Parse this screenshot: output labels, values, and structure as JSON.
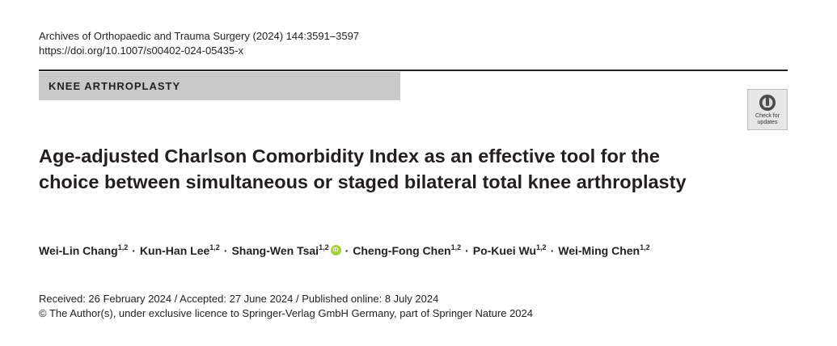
{
  "header": {
    "journal": "Archives of Orthopaedic and Trauma Surgery (2024) 144:3591–3597",
    "doi": "https://doi.org/10.1007/s00402-024-05435-x"
  },
  "section": {
    "label": "KNEE ARTHROPLASTY"
  },
  "badge": {
    "line1": "Check for",
    "line2": "updates",
    "icon": "check-for-updates-icon"
  },
  "article": {
    "title": "Age-adjusted Charlson Comorbidity Index as an effective tool for the choice between simultaneous or staged bilateral total knee arthroplasty"
  },
  "authors": [
    {
      "name": "Wei-Lin Chang",
      "aff": "1,2"
    },
    {
      "name": "Kun-Han Lee",
      "aff": "1,2"
    },
    {
      "name": "Shang-Wen Tsai",
      "aff": "1,2"
    },
    {
      "name": "Cheng-Fong Chen",
      "aff": "1,2"
    },
    {
      "name": "Po-Kuei Wu",
      "aff": "1,2"
    },
    {
      "name": "Wei-Ming Chen",
      "aff": "1,2"
    }
  ],
  "orcid_label": "iD",
  "separator": "·",
  "dates": "Received: 26 February 2024 / Accepted: 27 June 2024 / Published online: 8 July 2024",
  "copyright": "© The Author(s), under exclusive licence to Springer-Verlag GmbH Germany, part of Springer Nature 2024"
}
